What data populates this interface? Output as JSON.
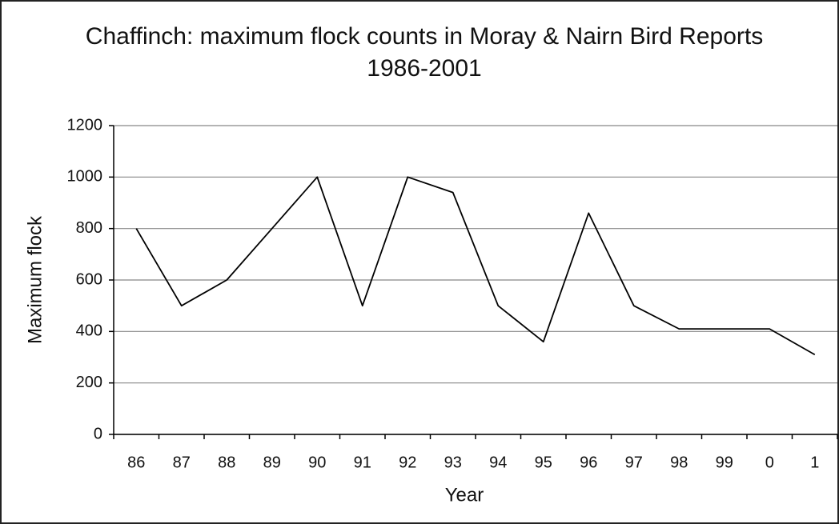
{
  "chart_data": {
    "type": "line",
    "title": "Chaffinch: maximum flock counts in Moray & Nairn Bird Reports 1986-2001",
    "x_label": "Year",
    "y_label": "Maximum flock",
    "categories": [
      "86",
      "87",
      "88",
      "89",
      "90",
      "91",
      "92",
      "93",
      "94",
      "95",
      "96",
      "97",
      "98",
      "99",
      "0",
      "1"
    ],
    "values": [
      800,
      500,
      600,
      800,
      1000,
      500,
      1000,
      940,
      500,
      360,
      860,
      500,
      410,
      410,
      410,
      310
    ],
    "color": "#000000",
    "ylim": [
      0,
      1200
    ],
    "yticks": [
      0,
      200,
      400,
      600,
      800,
      1000,
      1200
    ],
    "grid": true
  }
}
